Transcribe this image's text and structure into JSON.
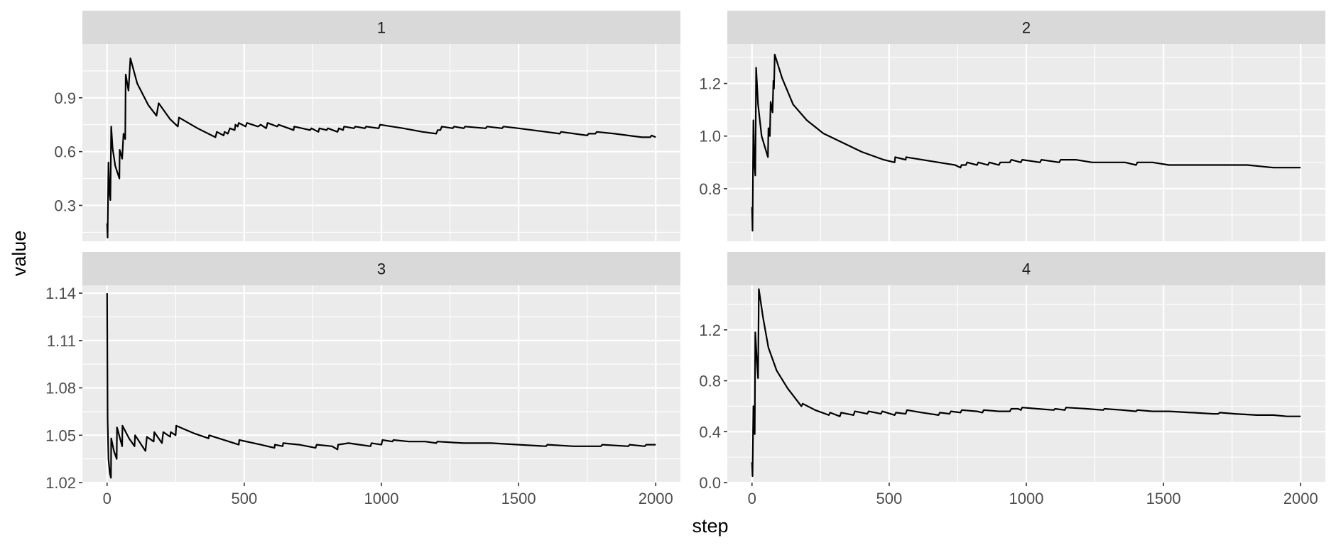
{
  "chart_data": {
    "type": "line",
    "facet_layout": "2x2 grid",
    "shared_x_axis": true,
    "xlabel": "step",
    "ylabel": "value",
    "xlim": [
      -90,
      2090
    ],
    "x_ticks": [
      0,
      500,
      1000,
      1500,
      2000
    ],
    "grid": true,
    "panel_background": "#ebebeb",
    "strip_background": "#d9d9d9",
    "gridline_color": "#ffffff",
    "line_color": "#000000",
    "panels": [
      {
        "strip": "1",
        "ylim": [
          0.1,
          1.2
        ],
        "y_ticks": [
          0.3,
          0.6,
          0.9
        ],
        "y_tick_labels": [
          "0.3",
          "0.6",
          "0.9"
        ],
        "points": [
          [
            0,
            0.2
          ],
          [
            2,
            0.12
          ],
          [
            5,
            0.54
          ],
          [
            8,
            0.38
          ],
          [
            12,
            0.33
          ],
          [
            15,
            0.74
          ],
          [
            20,
            0.62
          ],
          [
            30,
            0.52
          ],
          [
            45,
            0.45
          ],
          [
            46,
            0.61
          ],
          [
            55,
            0.56
          ],
          [
            60,
            0.7
          ],
          [
            66,
            0.67
          ],
          [
            68,
            1.03
          ],
          [
            78,
            0.94
          ],
          [
            85,
            1.12
          ],
          [
            110,
            0.98
          ],
          [
            150,
            0.86
          ],
          [
            180,
            0.8
          ],
          [
            188,
            0.87
          ],
          [
            230,
            0.78
          ],
          [
            258,
            0.74
          ],
          [
            262,
            0.79
          ],
          [
            330,
            0.73
          ],
          [
            395,
            0.68
          ],
          [
            400,
            0.71
          ],
          [
            425,
            0.69
          ],
          [
            428,
            0.71
          ],
          [
            440,
            0.7
          ],
          [
            448,
            0.73
          ],
          [
            465,
            0.72
          ],
          [
            468,
            0.75
          ],
          [
            476,
            0.74
          ],
          [
            480,
            0.76
          ],
          [
            505,
            0.74
          ],
          [
            510,
            0.76
          ],
          [
            550,
            0.74
          ],
          [
            560,
            0.75
          ],
          [
            580,
            0.73
          ],
          [
            585,
            0.76
          ],
          [
            620,
            0.74
          ],
          [
            625,
            0.75
          ],
          [
            680,
            0.72
          ],
          [
            682,
            0.74
          ],
          [
            740,
            0.72
          ],
          [
            745,
            0.73
          ],
          [
            770,
            0.71
          ],
          [
            774,
            0.73
          ],
          [
            800,
            0.72
          ],
          [
            805,
            0.73
          ],
          [
            840,
            0.71
          ],
          [
            845,
            0.73
          ],
          [
            860,
            0.72
          ],
          [
            864,
            0.74
          ],
          [
            900,
            0.73
          ],
          [
            905,
            0.74
          ],
          [
            940,
            0.73
          ],
          [
            944,
            0.74
          ],
          [
            990,
            0.73
          ],
          [
            995,
            0.75
          ],
          [
            1080,
            0.73
          ],
          [
            1150,
            0.71
          ],
          [
            1200,
            0.7
          ],
          [
            1205,
            0.72
          ],
          [
            1215,
            0.72
          ],
          [
            1220,
            0.74
          ],
          [
            1260,
            0.73
          ],
          [
            1265,
            0.74
          ],
          [
            1300,
            0.73
          ],
          [
            1305,
            0.74
          ],
          [
            1380,
            0.73
          ],
          [
            1385,
            0.74
          ],
          [
            1440,
            0.73
          ],
          [
            1445,
            0.74
          ],
          [
            1500,
            0.73
          ],
          [
            1550,
            0.72
          ],
          [
            1600,
            0.71
          ],
          [
            1650,
            0.7
          ],
          [
            1655,
            0.71
          ],
          [
            1750,
            0.69
          ],
          [
            1755,
            0.7
          ],
          [
            1780,
            0.7
          ],
          [
            1785,
            0.71
          ],
          [
            1850,
            0.7
          ],
          [
            1950,
            0.68
          ],
          [
            1980,
            0.68
          ],
          [
            1985,
            0.69
          ],
          [
            2000,
            0.68
          ]
        ]
      },
      {
        "strip": "2",
        "ylim": [
          0.6,
          1.35
        ],
        "y_ticks": [
          0.8,
          1.0,
          1.2
        ],
        "y_tick_labels": [
          "0.8",
          "1.0",
          "1.2"
        ],
        "points": [
          [
            0,
            0.73
          ],
          [
            2,
            0.64
          ],
          [
            5,
            1.06
          ],
          [
            8,
            0.9
          ],
          [
            12,
            0.85
          ],
          [
            15,
            1.26
          ],
          [
            22,
            1.12
          ],
          [
            35,
            1.0
          ],
          [
            58,
            0.92
          ],
          [
            60,
            1.03
          ],
          [
            65,
            1.0
          ],
          [
            68,
            1.13
          ],
          [
            75,
            1.09
          ],
          [
            78,
            1.21
          ],
          [
            80,
            1.18
          ],
          [
            83,
            1.31
          ],
          [
            110,
            1.22
          ],
          [
            150,
            1.12
          ],
          [
            200,
            1.06
          ],
          [
            260,
            1.01
          ],
          [
            320,
            0.98
          ],
          [
            400,
            0.94
          ],
          [
            480,
            0.91
          ],
          [
            520,
            0.9
          ],
          [
            522,
            0.92
          ],
          [
            560,
            0.91
          ],
          [
            562,
            0.92
          ],
          [
            620,
            0.91
          ],
          [
            680,
            0.9
          ],
          [
            740,
            0.89
          ],
          [
            760,
            0.88
          ],
          [
            764,
            0.89
          ],
          [
            780,
            0.89
          ],
          [
            784,
            0.9
          ],
          [
            820,
            0.89
          ],
          [
            825,
            0.9
          ],
          [
            860,
            0.89
          ],
          [
            865,
            0.9
          ],
          [
            900,
            0.89
          ],
          [
            905,
            0.9
          ],
          [
            940,
            0.9
          ],
          [
            945,
            0.91
          ],
          [
            980,
            0.9
          ],
          [
            985,
            0.91
          ],
          [
            1050,
            0.9
          ],
          [
            1055,
            0.91
          ],
          [
            1120,
            0.9
          ],
          [
            1125,
            0.91
          ],
          [
            1180,
            0.91
          ],
          [
            1240,
            0.9
          ],
          [
            1300,
            0.9
          ],
          [
            1305,
            0.9
          ],
          [
            1360,
            0.9
          ],
          [
            1400,
            0.89
          ],
          [
            1405,
            0.9
          ],
          [
            1460,
            0.9
          ],
          [
            1520,
            0.89
          ],
          [
            1600,
            0.89
          ],
          [
            1605,
            0.89
          ],
          [
            1700,
            0.89
          ],
          [
            1800,
            0.89
          ],
          [
            1805,
            0.89
          ],
          [
            1900,
            0.88
          ],
          [
            2000,
            0.88
          ]
        ]
      },
      {
        "strip": "3",
        "ylim": [
          1.02,
          1.145
        ],
        "y_ticks": [
          1.02,
          1.05,
          1.08,
          1.11,
          1.14
        ],
        "y_tick_labels": [
          "1.02",
          "1.05",
          "1.08",
          "1.11",
          "1.14"
        ],
        "points": [
          [
            0,
            1.14
          ],
          [
            2,
            1.06
          ],
          [
            5,
            1.035
          ],
          [
            10,
            1.026
          ],
          [
            14,
            1.023
          ],
          [
            15,
            1.048
          ],
          [
            25,
            1.04
          ],
          [
            35,
            1.035
          ],
          [
            36,
            1.055
          ],
          [
            55,
            1.043
          ],
          [
            56,
            1.056
          ],
          [
            80,
            1.048
          ],
          [
            100,
            1.043
          ],
          [
            102,
            1.05
          ],
          [
            140,
            1.04
          ],
          [
            145,
            1.049
          ],
          [
            170,
            1.046
          ],
          [
            172,
            1.052
          ],
          [
            200,
            1.045
          ],
          [
            205,
            1.052
          ],
          [
            230,
            1.049
          ],
          [
            232,
            1.052
          ],
          [
            250,
            1.05
          ],
          [
            252,
            1.056
          ],
          [
            320,
            1.051
          ],
          [
            370,
            1.048
          ],
          [
            372,
            1.05
          ],
          [
            480,
            1.044
          ],
          [
            482,
            1.047
          ],
          [
            560,
            1.044
          ],
          [
            610,
            1.042
          ],
          [
            612,
            1.044
          ],
          [
            640,
            1.043
          ],
          [
            642,
            1.045
          ],
          [
            700,
            1.044
          ],
          [
            760,
            1.042
          ],
          [
            764,
            1.044
          ],
          [
            820,
            1.043
          ],
          [
            840,
            1.041
          ],
          [
            842,
            1.044
          ],
          [
            880,
            1.045
          ],
          [
            920,
            1.044
          ],
          [
            960,
            1.043
          ],
          [
            964,
            1.045
          ],
          [
            1000,
            1.044
          ],
          [
            1004,
            1.047
          ],
          [
            1040,
            1.046
          ],
          [
            1044,
            1.047
          ],
          [
            1100,
            1.046
          ],
          [
            1160,
            1.046
          ],
          [
            1200,
            1.045
          ],
          [
            1204,
            1.046
          ],
          [
            1300,
            1.045
          ],
          [
            1400,
            1.045
          ],
          [
            1500,
            1.044
          ],
          [
            1600,
            1.043
          ],
          [
            1605,
            1.044
          ],
          [
            1700,
            1.043
          ],
          [
            1800,
            1.043
          ],
          [
            1805,
            1.044
          ],
          [
            1900,
            1.043
          ],
          [
            1905,
            1.044
          ],
          [
            1960,
            1.043
          ],
          [
            1965,
            1.044
          ],
          [
            2000,
            1.044
          ]
        ]
      },
      {
        "strip": "4",
        "ylim": [
          0.0,
          1.55
        ],
        "y_ticks": [
          0.0,
          0.4,
          0.8,
          1.2
        ],
        "y_tick_labels": [
          "0.0",
          "0.4",
          "0.8",
          "1.2"
        ],
        "points": [
          [
            0,
            0.16
          ],
          [
            2,
            0.05
          ],
          [
            5,
            0.6
          ],
          [
            8,
            0.43
          ],
          [
            10,
            0.38
          ],
          [
            12,
            1.18
          ],
          [
            18,
            0.95
          ],
          [
            22,
            0.82
          ],
          [
            25,
            1.52
          ],
          [
            40,
            1.3
          ],
          [
            60,
            1.06
          ],
          [
            90,
            0.88
          ],
          [
            130,
            0.74
          ],
          [
            180,
            0.6
          ],
          [
            185,
            0.62
          ],
          [
            230,
            0.57
          ],
          [
            280,
            0.53
          ],
          [
            285,
            0.55
          ],
          [
            320,
            0.52
          ],
          [
            325,
            0.55
          ],
          [
            370,
            0.53
          ],
          [
            375,
            0.56
          ],
          [
            420,
            0.54
          ],
          [
            425,
            0.56
          ],
          [
            470,
            0.54
          ],
          [
            475,
            0.56
          ],
          [
            520,
            0.53
          ],
          [
            525,
            0.55
          ],
          [
            560,
            0.54
          ],
          [
            565,
            0.57
          ],
          [
            620,
            0.55
          ],
          [
            680,
            0.53
          ],
          [
            685,
            0.55
          ],
          [
            720,
            0.54
          ],
          [
            725,
            0.56
          ],
          [
            760,
            0.55
          ],
          [
            765,
            0.57
          ],
          [
            820,
            0.56
          ],
          [
            840,
            0.55
          ],
          [
            845,
            0.57
          ],
          [
            900,
            0.56
          ],
          [
            940,
            0.56
          ],
          [
            945,
            0.58
          ],
          [
            970,
            0.58
          ],
          [
            980,
            0.57
          ],
          [
            985,
            0.59
          ],
          [
            1040,
            0.58
          ],
          [
            1100,
            0.57
          ],
          [
            1105,
            0.58
          ],
          [
            1140,
            0.57
          ],
          [
            1145,
            0.59
          ],
          [
            1220,
            0.58
          ],
          [
            1280,
            0.57
          ],
          [
            1285,
            0.58
          ],
          [
            1350,
            0.57
          ],
          [
            1400,
            0.56
          ],
          [
            1405,
            0.57
          ],
          [
            1460,
            0.56
          ],
          [
            1520,
            0.56
          ],
          [
            1600,
            0.55
          ],
          [
            1605,
            0.55
          ],
          [
            1680,
            0.54
          ],
          [
            1700,
            0.54
          ],
          [
            1705,
            0.55
          ],
          [
            1760,
            0.54
          ],
          [
            1840,
            0.53
          ],
          [
            1900,
            0.53
          ],
          [
            1950,
            0.52
          ],
          [
            1980,
            0.52
          ],
          [
            1985,
            0.52
          ],
          [
            2000,
            0.52
          ]
        ]
      }
    ]
  }
}
